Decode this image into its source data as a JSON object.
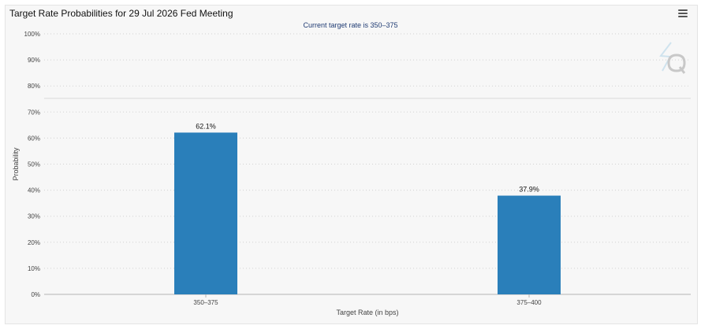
{
  "chart_data": {
    "type": "bar",
    "title": "Target Rate Probabilities for 29 Jul 2026 Fed Meeting",
    "subtitle": "Current target rate is 350–375",
    "categories": [
      "350–375",
      "375–400"
    ],
    "values": [
      62.1,
      37.9
    ],
    "value_labels": [
      "62.1%",
      "37.9%"
    ],
    "xlabel": "Target Rate (in bps)",
    "ylabel": "Probability",
    "ylim": [
      0,
      100
    ],
    "y_ticks": [
      0,
      10,
      20,
      30,
      40,
      50,
      60,
      70,
      80,
      90,
      100
    ],
    "y_tick_suffix": "%",
    "grid": true,
    "bar_color": "#2a7fba"
  },
  "ui": {
    "menu_icon": "hamburger-menu-icon",
    "watermark_icon": "q-logo-icon"
  }
}
